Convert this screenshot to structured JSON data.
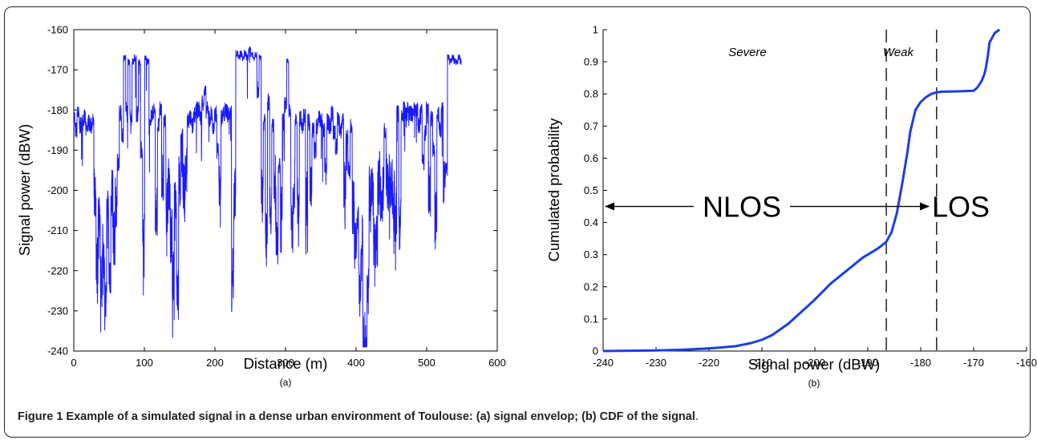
{
  "caption": {
    "bold": "Figure 1 Example of a simulated signal in a dense urban environment of Toulouse: (a) signal envelop; (b) CDF of the signal",
    "tail": "."
  },
  "chart_data": [
    {
      "type": "line",
      "panel_label": "(a)",
      "xlabel": "Distance (m)",
      "ylabel": "Signal power (dBW)",
      "xlim": [
        0,
        600
      ],
      "ylim": [
        -240,
        -160
      ],
      "xticks": [
        "0",
        "100",
        "200",
        "300",
        "400",
        "500",
        "600"
      ],
      "yticks": [
        "-240",
        "-230",
        "-220",
        "-210",
        "-200",
        "-190",
        "-180",
        "-170",
        "-160"
      ],
      "color": "#1a1aff",
      "series": [
        {
          "x": [
            0,
            3,
            6,
            9,
            12,
            15,
            18,
            21,
            24,
            27,
            30,
            33,
            36,
            39,
            42,
            45,
            48,
            51,
            54,
            57,
            60,
            63,
            66,
            69,
            72,
            75,
            78,
            81,
            84,
            87,
            90,
            93,
            96,
            99,
            102,
            105,
            108,
            111,
            114,
            117,
            120,
            123,
            126,
            129,
            132,
            135,
            138,
            141,
            144,
            147,
            150,
            153,
            156,
            159,
            162,
            165,
            168,
            171,
            174,
            177,
            180,
            183,
            186,
            189,
            192,
            195,
            198,
            201,
            204,
            207,
            210,
            213,
            216,
            219,
            222,
            225,
            228,
            231,
            234,
            237,
            240,
            243,
            246,
            249,
            252,
            255,
            258,
            261,
            264,
            267,
            270,
            273,
            276,
            279,
            282,
            285,
            288,
            291,
            294,
            297,
            300,
            303,
            306,
            309,
            312,
            315,
            318,
            321,
            324,
            327,
            330,
            333,
            336,
            339,
            342,
            345,
            348,
            351,
            354,
            357,
            360,
            363,
            366,
            369,
            372,
            375,
            378,
            381,
            384,
            387,
            390,
            393,
            396,
            399,
            402,
            405,
            408,
            411,
            414,
            417,
            420,
            423,
            426,
            429,
            432,
            435,
            438,
            441,
            444,
            447,
            450,
            453,
            456,
            459,
            462,
            465,
            468,
            471,
            474,
            477,
            480,
            483,
            486,
            489,
            492,
            495,
            498,
            501,
            504,
            507,
            510,
            513,
            516,
            519,
            522,
            525,
            528,
            531,
            534,
            537,
            540,
            543,
            546,
            549
          ],
          "y": [
            -182,
            -185,
            -181,
            -184,
            -183,
            -182,
            -185,
            -183,
            -184,
            -183,
            -201,
            -218,
            -206,
            -222,
            -215,
            -228,
            -205,
            -220,
            -200,
            -212,
            -203,
            -193,
            -181,
            -186,
            -167,
            -180,
            -168,
            -182,
            -168,
            -167,
            -181,
            -168,
            -190,
            -212,
            -167,
            -168,
            -184,
            -181,
            -180,
            -205,
            -184,
            -180,
            -197,
            -183,
            -204,
            -198,
            -211,
            -222,
            -201,
            -224,
            -198,
            -186,
            -200,
            -196,
            -183,
            -182,
            -184,
            -181,
            -180,
            -180,
            -182,
            -178,
            -176,
            -180,
            -182,
            -181,
            -185,
            -181,
            -190,
            -198,
            -182,
            -181,
            -180,
            -181,
            -181,
            -221,
            -200,
            -166,
            -167,
            -166,
            -167,
            -166,
            -167,
            -165,
            -166,
            -167,
            -166,
            -175,
            -167,
            -201,
            -183,
            -208,
            -178,
            -204,
            -184,
            -196,
            -212,
            -194,
            -203,
            -183,
            -178,
            -168,
            -180,
            -209,
            -198,
            -183,
            -202,
            -182,
            -184,
            -181,
            -202,
            -183,
            -197,
            -185,
            -190,
            -184,
            -182,
            -183,
            -185,
            -194,
            -183,
            -184,
            -181,
            -186,
            -189,
            -182,
            -185,
            -183,
            -199,
            -187,
            -195,
            -184,
            -204,
            -215,
            -210,
            -225,
            -212,
            -234,
            -238,
            -221,
            -199,
            -200,
            -213,
            -213,
            -197,
            -201,
            -201,
            -185,
            -197,
            -198,
            -199,
            -202,
            -206,
            -181,
            -208,
            -182,
            -180,
            -181,
            -180,
            -181,
            -181,
            -180,
            -180,
            -184,
            -180,
            -193,
            -186,
            -180,
            -199,
            -182,
            -190,
            -206,
            -181,
            -185,
            -180,
            -199,
            -195,
            -167,
            -168,
            -167,
            -168,
            -168,
            -167,
            -168
          ]
        }
      ]
    },
    {
      "type": "line",
      "panel_label": "(b)",
      "xlabel": "Signal power (dBW)",
      "ylabel": "Cumulated probability",
      "xlim": [
        -240,
        -160
      ],
      "ylim": [
        0,
        1
      ],
      "xticks": [
        "-240",
        "-230",
        "-220",
        "-210",
        "-200",
        "-190",
        "-180",
        "-170",
        "-160"
      ],
      "yticks": [
        "0",
        "0.1",
        "0.2",
        "0.3",
        "0.4",
        "0.5",
        "0.6",
        "0.7",
        "0.8",
        "0.9",
        "1"
      ],
      "color": "#1a3fe6",
      "series": [
        {
          "x": [
            -240,
            -230,
            -225,
            -220,
            -215,
            -212,
            -210,
            -208,
            -205,
            -202,
            -200,
            -197,
            -194,
            -191,
            -188,
            -186.5,
            -185.5,
            -184.5,
            -183.5,
            -182.5,
            -182,
            -181,
            -180,
            -179,
            -178,
            -177,
            -176,
            -173,
            -170,
            -169.3,
            -168.5,
            -168,
            -167.7,
            -167.3,
            -167,
            -166,
            -165.1
          ],
          "y": [
            0,
            0.002,
            0.004,
            0.008,
            0.015,
            0.025,
            0.035,
            0.05,
            0.085,
            0.13,
            0.16,
            0.21,
            0.25,
            0.29,
            0.32,
            0.34,
            0.37,
            0.43,
            0.52,
            0.62,
            0.68,
            0.75,
            0.775,
            0.79,
            0.8,
            0.805,
            0.807,
            0.808,
            0.81,
            0.82,
            0.84,
            0.86,
            0.88,
            0.92,
            0.96,
            0.99,
            1
          ]
        }
      ],
      "vlines": [
        -186.5,
        -177
      ],
      "annotations": {
        "severe": "Severe",
        "weak": "Weak",
        "nlos": "NLOS",
        "los": "LOS",
        "arrow_y": 0.45
      }
    }
  ]
}
